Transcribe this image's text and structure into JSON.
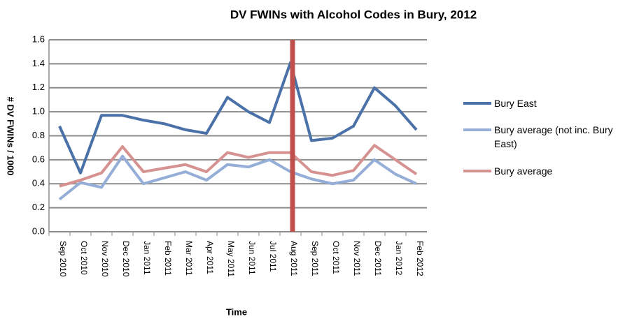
{
  "chart_data": {
    "type": "line",
    "title": "DV FWINs  with Alcohol Codes in Bury, 2012",
    "x_label": "Time",
    "y_label": "# DV FWINs / 1000",
    "categories": [
      "Sep 2010",
      "Oct 2010",
      "Nov 2010",
      "Dec 2010",
      "Jan 2011",
      "Feb 2011",
      "Mar 2011",
      "Apr 2011",
      "May 2011",
      "Jun 2011",
      "Jul 2011",
      "Aug 2011",
      "Sep 2011",
      "Oct 2011",
      "Nov 2011",
      "Dec 2011",
      "Jan 2012",
      "Feb 2012"
    ],
    "series": [
      {
        "name": "Bury East",
        "color": "#4a72a8",
        "values": [
          0.88,
          0.49,
          0.97,
          0.97,
          0.93,
          0.9,
          0.85,
          0.82,
          1.12,
          1.0,
          0.91,
          1.41,
          0.76,
          0.78,
          0.88,
          1.2,
          1.05,
          0.85
        ]
      },
      {
        "name": "Bury average (not inc. Bury East)",
        "color": "#95aed8",
        "values": [
          0.27,
          0.41,
          0.37,
          0.63,
          0.4,
          0.45,
          0.5,
          0.43,
          0.56,
          0.54,
          0.6,
          0.5,
          0.44,
          0.4,
          0.43,
          0.6,
          0.48,
          0.4
        ]
      },
      {
        "name": "Bury average",
        "color": "#d59290",
        "values": [
          0.38,
          0.43,
          0.49,
          0.71,
          0.5,
          0.53,
          0.56,
          0.5,
          0.66,
          0.62,
          0.66,
          0.66,
          0.5,
          0.47,
          0.51,
          0.72,
          0.6,
          0.48
        ]
      }
    ],
    "vline": {
      "category": "Aug 2011",
      "color": "#c0504d"
    },
    "ylim": [
      0,
      1.6
    ],
    "yticks": [
      {
        "value": 0,
        "label": "0.0"
      },
      0.2,
      0.4,
      0.6,
      0.8,
      {
        "value": 1,
        "label": "1.0"
      },
      1.2,
      1.4,
      1.6
    ],
    "grid": true,
    "legend": "right"
  }
}
